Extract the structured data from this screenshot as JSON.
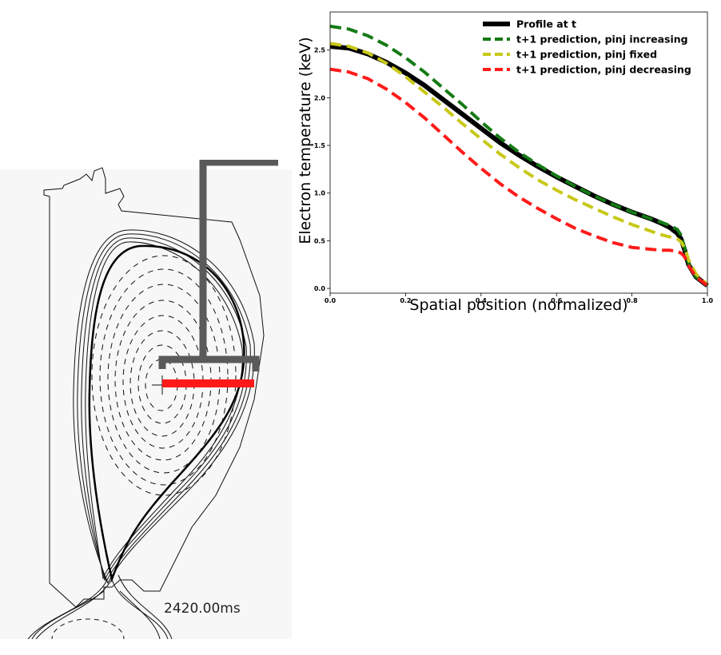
{
  "tokamak": {
    "timestamp": "2420.00ms",
    "colors": {
      "diagnostic": "#5a5a5a",
      "chord": "#ff1a1a",
      "flux": "#000000"
    }
  },
  "chart_data": {
    "type": "line",
    "title": "",
    "xlabel": "Spatial position (normalized)",
    "ylabel": "Electron temperature (keV)",
    "xlim": [
      0.0,
      1.0
    ],
    "ylim": [
      -0.05,
      2.9
    ],
    "xticks": [
      0.0,
      0.2,
      0.4,
      0.6,
      0.8,
      1.0
    ],
    "xtick_labels": [
      "0.0",
      "0.2",
      "0.4",
      "0.6",
      "0.8",
      "1.0"
    ],
    "yticks": [
      0.0,
      0.5,
      1.0,
      1.5,
      2.0,
      2.5
    ],
    "ytick_labels": [
      "0.0",
      "0.5",
      "1.0",
      "1.5",
      "2.0",
      "2.5"
    ],
    "grid": false,
    "legend_position": "top-right",
    "series": [
      {
        "name": "Profile at t",
        "color": "#000000",
        "style": "solid",
        "x": [
          0.0,
          0.05,
          0.1,
          0.15,
          0.2,
          0.25,
          0.3,
          0.35,
          0.4,
          0.45,
          0.5,
          0.55,
          0.6,
          0.65,
          0.7,
          0.75,
          0.8,
          0.85,
          0.88,
          0.9,
          0.92,
          0.93,
          0.94,
          0.95,
          0.97,
          1.0
        ],
        "y": [
          2.54,
          2.52,
          2.46,
          2.37,
          2.26,
          2.13,
          1.98,
          1.83,
          1.68,
          1.53,
          1.4,
          1.28,
          1.17,
          1.07,
          0.97,
          0.88,
          0.8,
          0.73,
          0.68,
          0.64,
          0.58,
          0.52,
          0.4,
          0.25,
          0.12,
          0.03
        ]
      },
      {
        "name": "t+1 prediction, pinj increasing",
        "color": "#147a14",
        "style": "dashed",
        "x": [
          0.0,
          0.05,
          0.1,
          0.15,
          0.2,
          0.25,
          0.3,
          0.35,
          0.4,
          0.45,
          0.5,
          0.55,
          0.6,
          0.65,
          0.7,
          0.75,
          0.8,
          0.85,
          0.88,
          0.9,
          0.92,
          0.93,
          0.94,
          0.95,
          0.97,
          1.0
        ],
        "y": [
          2.75,
          2.72,
          2.65,
          2.55,
          2.42,
          2.27,
          2.1,
          1.93,
          1.75,
          1.58,
          1.43,
          1.3,
          1.18,
          1.07,
          0.97,
          0.88,
          0.8,
          0.73,
          0.69,
          0.66,
          0.62,
          0.56,
          0.42,
          0.26,
          0.12,
          0.03
        ]
      },
      {
        "name": "t+1 prediction, pinj fixed",
        "color": "#c8c819",
        "style": "dashed",
        "x": [
          0.0,
          0.05,
          0.1,
          0.15,
          0.2,
          0.25,
          0.3,
          0.35,
          0.4,
          0.45,
          0.5,
          0.55,
          0.6,
          0.65,
          0.7,
          0.75,
          0.8,
          0.85,
          0.88,
          0.9,
          0.92,
          0.93,
          0.94,
          0.95,
          0.97,
          1.0
        ],
        "y": [
          2.57,
          2.54,
          2.47,
          2.36,
          2.22,
          2.06,
          1.9,
          1.73,
          1.57,
          1.41,
          1.27,
          1.14,
          1.03,
          0.93,
          0.84,
          0.75,
          0.67,
          0.6,
          0.56,
          0.54,
          0.52,
          0.49,
          0.42,
          0.3,
          0.15,
          0.04
        ]
      },
      {
        "name": "t+1 prediction, pinj decreasing",
        "color": "#ff1a1a",
        "style": "dashed",
        "x": [
          0.0,
          0.05,
          0.1,
          0.15,
          0.2,
          0.25,
          0.3,
          0.35,
          0.4,
          0.45,
          0.5,
          0.55,
          0.6,
          0.65,
          0.7,
          0.75,
          0.8,
          0.85,
          0.88,
          0.9,
          0.92,
          0.93,
          0.94,
          0.95,
          0.97,
          1.0
        ],
        "y": [
          2.3,
          2.27,
          2.2,
          2.09,
          1.95,
          1.79,
          1.61,
          1.43,
          1.26,
          1.1,
          0.96,
          0.84,
          0.73,
          0.63,
          0.55,
          0.48,
          0.43,
          0.41,
          0.4,
          0.4,
          0.39,
          0.37,
          0.33,
          0.24,
          0.12,
          0.03
        ]
      }
    ]
  }
}
